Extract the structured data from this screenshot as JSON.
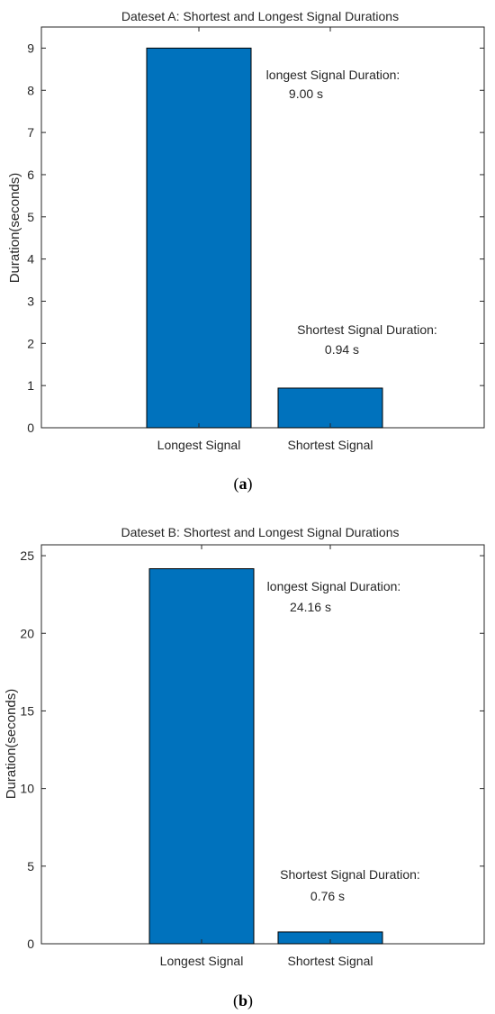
{
  "chart_data": [
    {
      "type": "bar",
      "title": "Dateset A: Shortest and Longest Signal Durations",
      "xlabel": "",
      "ylabel": "Duration(seconds)",
      "categories": [
        "Longest Signal",
        "Shortest Signal"
      ],
      "values": [
        9.0,
        0.94
      ],
      "ylim": [
        0,
        9.5
      ],
      "yticks": [
        0,
        1,
        2,
        3,
        4,
        5,
        6,
        7,
        8,
        9
      ],
      "bar_color": "#0072BD",
      "grid": false,
      "annotations": [
        {
          "line1": "longest Signal Duration:",
          "line2": "9.00 s",
          "category": "Longest Signal"
        },
        {
          "line1": "Shortest Signal Duration:",
          "line2": "0.94 s",
          "category": "Shortest Signal"
        }
      ],
      "caption": {
        "open": "(",
        "letter": "a",
        "close": ")"
      }
    },
    {
      "type": "bar",
      "title": "Dateset B: Shortest and Longest Signal Durations",
      "xlabel": "",
      "ylabel": "Duration(seconds)",
      "categories": [
        "Longest Signal",
        "Shortest Signal"
      ],
      "values": [
        24.16,
        0.76
      ],
      "ylim": [
        0,
        25.7
      ],
      "yticks": [
        0,
        5,
        10,
        15,
        20,
        25
      ],
      "bar_color": "#0072BD",
      "grid": false,
      "annotations": [
        {
          "line1": "longest Signal Duration:",
          "line2": "24.16 s",
          "category": "Longest Signal"
        },
        {
          "line1": "Shortest Signal Duration:",
          "line2": "0.76 s",
          "category": "Shortest Signal"
        }
      ],
      "caption": {
        "open": "(",
        "letter": "b",
        "close": ")"
      }
    }
  ]
}
